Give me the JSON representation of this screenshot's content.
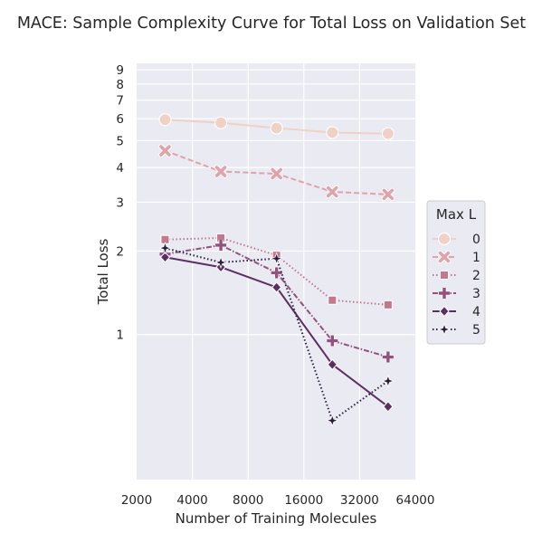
{
  "chart_data": {
    "type": "line",
    "title": "MACE: Sample Complexity Curve for Total Loss on Validation Set",
    "xlabel": "Number of Training Molecules",
    "ylabel": "Total Loss",
    "x_scale": "log2",
    "y_scale": "log",
    "xlim": [
      2000,
      64000
    ],
    "ylim": [
      0.3,
      9.5
    ],
    "x_ticks": [
      2000,
      4000,
      8000,
      16000,
      32000,
      64000
    ],
    "x_tick_labels": [
      "2000",
      "4000",
      "8000",
      "16000",
      "32000",
      "64000"
    ],
    "y_ticks": [
      1,
      2,
      3,
      4,
      5,
      6,
      7,
      8,
      9
    ],
    "y_tick_labels": [
      "1",
      "2",
      "3",
      "4",
      "5",
      "6",
      "7",
      "8",
      "9"
    ],
    "grid": true,
    "legend_title": "Max L",
    "legend_position": "right",
    "x": [
      2850,
      5700,
      11400,
      22800,
      45600
    ],
    "series": [
      {
        "name": "0",
        "values": [
          5.95,
          5.8,
          5.55,
          5.35,
          5.3
        ],
        "color": "#efd1c6",
        "marker": "circle",
        "dash": "solid"
      },
      {
        "name": "1",
        "values": [
          4.6,
          3.87,
          3.8,
          3.27,
          3.2
        ],
        "color": "#dfa4a9",
        "marker": "x",
        "dash": "dashed"
      },
      {
        "name": "2",
        "values": [
          2.2,
          2.23,
          1.93,
          1.33,
          1.28
        ],
        "color": "#c2798d",
        "marker": "square",
        "dash": "dotted"
      },
      {
        "name": "3",
        "values": [
          1.95,
          2.1,
          1.67,
          0.95,
          0.83
        ],
        "color": "#93517e",
        "marker": "plus",
        "dash": "dashdot"
      },
      {
        "name": "4",
        "values": [
          1.9,
          1.75,
          1.48,
          0.78,
          0.55
        ],
        "color": "#5c2f61",
        "marker": "diamond",
        "dash": "solid"
      },
      {
        "name": "5",
        "values": [
          2.05,
          1.82,
          1.88,
          0.49,
          0.68
        ],
        "color": "#2d1e3e",
        "marker": "star",
        "dash": "dotted"
      }
    ]
  }
}
